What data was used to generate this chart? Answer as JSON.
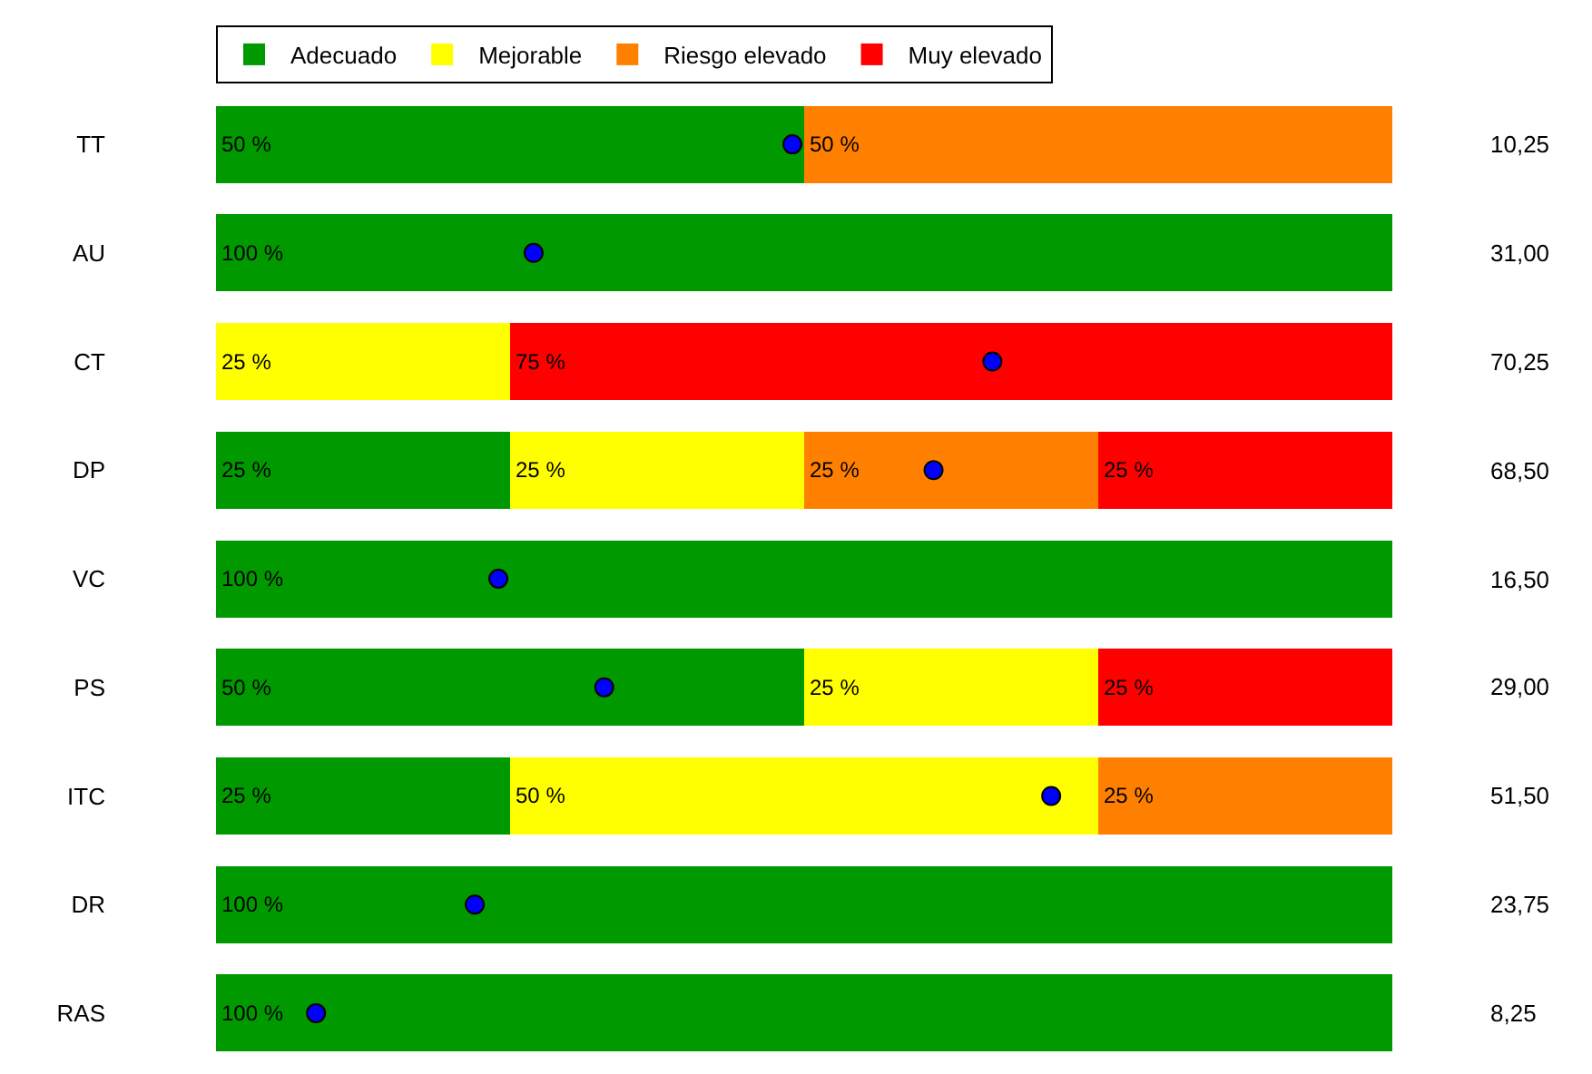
{
  "chart_data": {
    "type": "bar",
    "orientation": "horizontal",
    "stacked": true,
    "categories": [
      "TT",
      "AU",
      "CT",
      "DP",
      "VC",
      "PS",
      "ITC",
      "DR",
      "RAS"
    ],
    "xlim": [
      0,
      100
    ],
    "tick_labels": "y",
    "legend": "top",
    "series": [
      {
        "name": "Adecuado",
        "color": "#009900",
        "values": [
          50,
          100,
          0,
          25,
          100,
          50,
          25,
          100,
          100
        ],
        "value_labels": [
          "50 %",
          "100 %",
          null,
          "25 %",
          "100 %",
          "50 %",
          "25 %",
          "100 %",
          "100 %"
        ]
      },
      {
        "name": "Mejorable",
        "color": "#ffff00",
        "values": [
          0,
          0,
          25,
          25,
          0,
          25,
          50,
          0,
          0
        ],
        "value_labels": [
          null,
          null,
          "25 %",
          "25 %",
          null,
          "25 %",
          "50 %",
          null,
          null
        ]
      },
      {
        "name": "Riesgo elevado",
        "color": "#ff8000",
        "values": [
          50,
          0,
          0,
          25,
          0,
          0,
          25,
          0,
          0
        ],
        "value_labels": [
          "50 %",
          null,
          null,
          "25 %",
          null,
          null,
          "25 %",
          null,
          null
        ]
      },
      {
        "name": "Muy elevado",
        "color": "#ff0000",
        "values": [
          0,
          0,
          75,
          25,
          0,
          25,
          0,
          0,
          0
        ],
        "value_labels": [
          null,
          null,
          "75 %",
          "25 %",
          null,
          "25 %",
          null,
          null,
          null
        ]
      },
      {
        "type": "scatter",
        "color": "#0000ff",
        "marker": "circle",
        "values": [
          49,
          27,
          66,
          61,
          24,
          33,
          71,
          22,
          8.5
        ]
      }
    ],
    "annotations": [
      "10,25",
      "31,00",
      "70,25",
      "68,50",
      "16,50",
      "29,00",
      "51,50",
      "23,75",
      "8,25"
    ]
  }
}
